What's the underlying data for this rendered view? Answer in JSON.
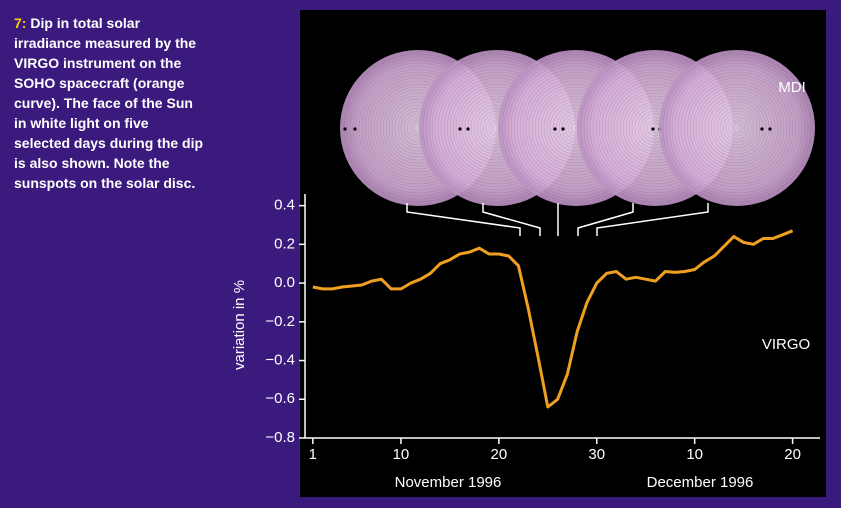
{
  "chart_data": {
    "type": "line",
    "caption_label": "7:",
    "caption": "Dip in total solar irradiance measured by the VIRGO instrument on the SOHO spacecraft (orange curve). The face of the Sun in white light on five selected days during the dip is also shown. Note the sunspots on the solar disc.",
    "y_label": "variation in %",
    "x_groups": [
      "November 1996",
      "December 1996"
    ],
    "annotations": [
      "MDI",
      "VIRGO"
    ],
    "x": [
      1,
      2,
      3,
      4,
      5,
      6,
      7,
      8,
      9,
      10,
      11,
      12,
      13,
      14,
      15,
      16,
      17,
      18,
      19,
      20,
      21,
      22,
      23,
      24,
      25,
      26,
      27,
      28,
      29,
      30,
      31,
      32,
      33,
      34,
      35,
      36,
      37,
      38,
      39,
      40,
      41,
      42,
      43,
      44,
      45,
      46,
      47,
      48,
      49,
      50
    ],
    "series": [
      {
        "name": "VIRGO",
        "color": "#f0a020",
        "values": [
          -0.02,
          -0.03,
          -0.03,
          -0.02,
          -0.015,
          -0.01,
          0.01,
          0.02,
          -0.03,
          -0.03,
          0.0,
          0.02,
          0.05,
          0.1,
          0.12,
          0.15,
          0.16,
          0.18,
          0.15,
          0.15,
          0.14,
          0.09,
          -0.13,
          -0.38,
          -0.64,
          -0.6,
          -0.47,
          -0.25,
          -0.1,
          0.0,
          0.05,
          0.06,
          0.02,
          0.03,
          0.02,
          0.01,
          0.06,
          0.055,
          0.06,
          0.07,
          0.11,
          0.14,
          0.19,
          0.24,
          0.21,
          0.2,
          0.23,
          0.23,
          0.25,
          0.27
        ]
      }
    ],
    "xlim": [
      0.2,
      52.8
    ],
    "xticks": [
      1,
      10,
      20,
      30,
      {
        "value": 40,
        "label": "10"
      },
      {
        "value": 50,
        "label": "20"
      }
    ],
    "ylim": [
      -0.8,
      0.46
    ],
    "yticks": [
      {
        "value": 0.4,
        "label": "0.4"
      },
      {
        "value": 0.2,
        "label": "0.2"
      },
      {
        "value": 0.0,
        "label": "0.0"
      },
      {
        "value": -0.2,
        "label": "−0.2"
      },
      {
        "value": -0.4,
        "label": "−0.4"
      },
      {
        "value": -0.6,
        "label": "−0.6"
      },
      {
        "value": -0.8,
        "label": "−0.8"
      }
    ]
  }
}
